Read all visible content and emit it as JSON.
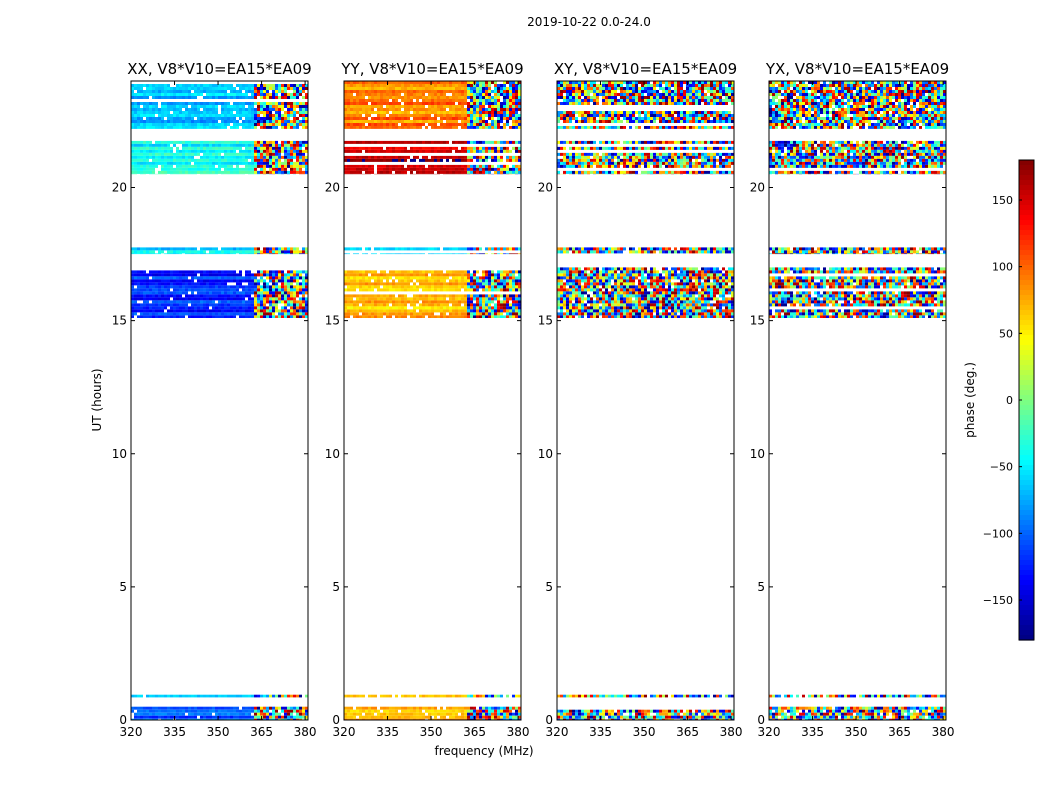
{
  "figure": {
    "suptitle": "2019-10-22 0.0-24.0",
    "xlabel": "frequency (MHz)",
    "ylabel": "UT (hours)"
  },
  "colorbar": {
    "label": "phase (deg.)",
    "ticks": [
      "150",
      "100",
      "50",
      "0",
      "−50",
      "−100",
      "−150"
    ],
    "tick_values": [
      150,
      100,
      50,
      0,
      -50,
      -100,
      -150
    ],
    "range": [
      -180,
      180
    ],
    "colormap": "jet"
  },
  "chart_data": [
    {
      "type": "heatmap",
      "title": "XX, V8*V10=EA15*EA09",
      "xlim": [
        320,
        381
      ],
      "ylim": [
        0,
        24
      ],
      "x_ticks": [
        "320",
        "335",
        "350",
        "365",
        "380"
      ],
      "x_tick_values": [
        320,
        335,
        350,
        365,
        380
      ],
      "y_ticks": [
        "0",
        "5",
        "10",
        "15",
        "20"
      ],
      "y_tick_values": [
        0,
        5,
        10,
        15,
        20
      ],
      "data_bands_ut": [
        [
          0.0,
          0.5
        ],
        [
          0.85,
          0.95
        ],
        [
          15.1,
          17.0
        ],
        [
          17.5,
          17.75
        ],
        [
          20.5,
          21.75
        ],
        [
          22.2,
          24.0
        ]
      ],
      "dominant_phase_deg": [
        -100,
        -80,
        -120,
        -60,
        -40,
        -70
      ],
      "noisy_above_mhz": 362
    },
    {
      "type": "heatmap",
      "title": "YY, V8*V10=EA15*EA09",
      "xlim": [
        320,
        381
      ],
      "ylim": [
        0,
        24
      ],
      "x_ticks": [
        "320",
        "335",
        "350",
        "365",
        "380"
      ],
      "x_tick_values": [
        320,
        335,
        350,
        365,
        380
      ],
      "y_ticks": [
        "0",
        "5",
        "10",
        "15",
        "20"
      ],
      "y_tick_values": [
        0,
        5,
        10,
        15,
        20
      ],
      "data_bands_ut": [
        [
          0.0,
          0.5
        ],
        [
          0.85,
          0.95
        ],
        [
          15.1,
          17.0
        ],
        [
          17.5,
          17.75
        ],
        [
          20.5,
          21.75
        ],
        [
          22.2,
          24.0
        ]
      ],
      "dominant_phase_deg": [
        80,
        60,
        70,
        -40,
        160,
        90
      ],
      "noisy_above_mhz": 362
    },
    {
      "type": "heatmap",
      "title": "XY, V8*V10=EA15*EA09",
      "xlim": [
        320,
        381
      ],
      "ylim": [
        0,
        24
      ],
      "x_ticks": [
        "320",
        "335",
        "350",
        "365",
        "380"
      ],
      "x_tick_values": [
        320,
        335,
        350,
        365,
        380
      ],
      "y_ticks": [
        "0",
        "5",
        "10",
        "15",
        "20"
      ],
      "y_tick_values": [
        0,
        5,
        10,
        15,
        20
      ],
      "data_bands_ut": [
        [
          0.0,
          0.5
        ],
        [
          0.85,
          0.95
        ],
        [
          15.1,
          17.0
        ],
        [
          17.5,
          17.75
        ],
        [
          20.5,
          21.75
        ],
        [
          22.2,
          24.0
        ]
      ],
      "dominant_phase_deg": [
        0,
        0,
        0,
        0,
        0,
        0
      ],
      "noisy_above_mhz": 320
    },
    {
      "type": "heatmap",
      "title": "YX, V8*V10=EA15*EA09",
      "xlim": [
        320,
        381
      ],
      "ylim": [
        0,
        24
      ],
      "x_ticks": [
        "320",
        "335",
        "350",
        "365",
        "380"
      ],
      "x_tick_values": [
        320,
        335,
        350,
        365,
        380
      ],
      "y_ticks": [
        "0",
        "5",
        "10",
        "15",
        "20"
      ],
      "y_tick_values": [
        0,
        5,
        10,
        15,
        20
      ],
      "data_bands_ut": [
        [
          0.0,
          0.5
        ],
        [
          0.85,
          0.95
        ],
        [
          15.1,
          17.0
        ],
        [
          17.5,
          17.75
        ],
        [
          20.5,
          21.75
        ],
        [
          22.2,
          24.0
        ]
      ],
      "dominant_phase_deg": [
        0,
        0,
        0,
        0,
        0,
        0
      ],
      "noisy_above_mhz": 320
    }
  ]
}
